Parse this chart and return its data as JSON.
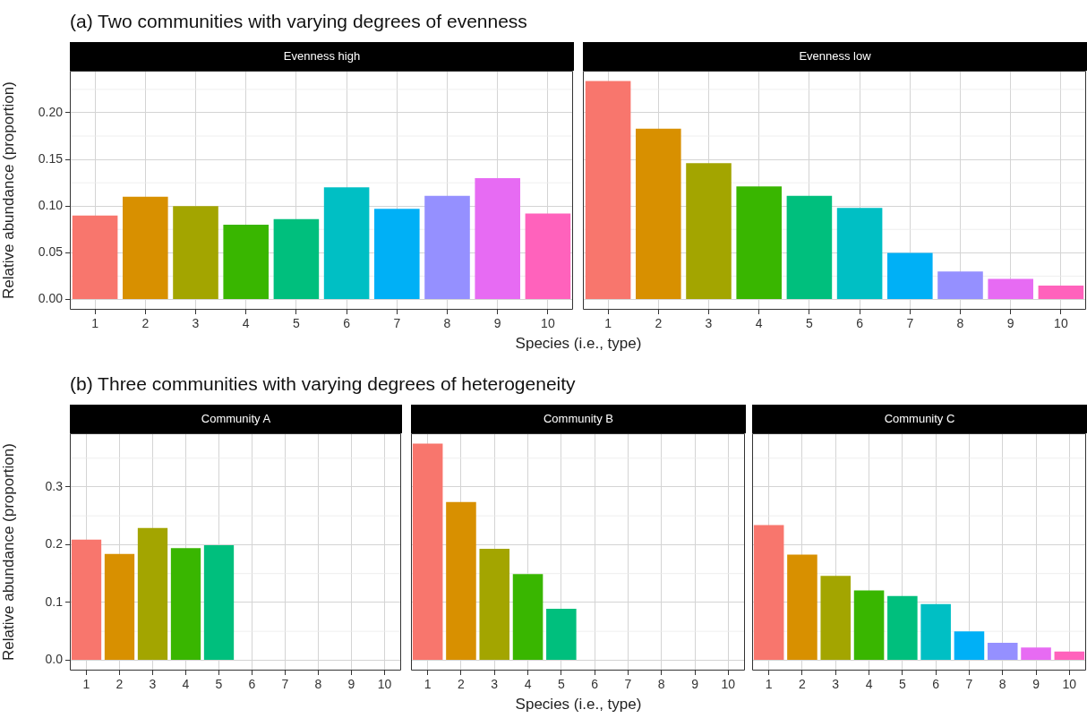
{
  "chart_data": [
    {
      "type": "bar",
      "title": "(a) Two communities with varying degrees of evenness",
      "subtitle": "Evenness high",
      "xlabel": "Species (i.e., type)",
      "ylabel": "Relative abundance (proportion)",
      "categories": [
        "1",
        "2",
        "3",
        "4",
        "5",
        "6",
        "7",
        "8",
        "9",
        "10"
      ],
      "values": [
        0.09,
        0.11,
        0.1,
        0.08,
        0.086,
        0.12,
        0.097,
        0.111,
        0.13,
        0.092
      ],
      "colors": [
        "#f8766d",
        "#d89000",
        "#a3a500",
        "#39b600",
        "#00bf7d",
        "#00bfc4",
        "#00b0f6",
        "#9590ff",
        "#e76bf3",
        "#ff62bc"
      ],
      "ylim": [
        -0.011,
        0.245
      ],
      "yticks": [
        {
          "value": 0,
          "label": "0.00"
        },
        {
          "value": 0.05,
          "label": "0.05"
        },
        {
          "value": 0.1,
          "label": "0.10"
        },
        {
          "value": 0.15,
          "label": "0.15"
        },
        {
          "value": 0.2,
          "label": "0.20"
        }
      ],
      "grid": true
    },
    {
      "type": "bar",
      "subtitle": "Evenness low",
      "categories": [
        "1",
        "2",
        "3",
        "4",
        "5",
        "6",
        "7",
        "8",
        "9",
        "10"
      ],
      "values": [
        0.234,
        0.183,
        0.146,
        0.121,
        0.111,
        0.098,
        0.05,
        0.03,
        0.022,
        0.015
      ],
      "colors": [
        "#f8766d",
        "#d89000",
        "#a3a500",
        "#39b600",
        "#00bf7d",
        "#00bfc4",
        "#00b0f6",
        "#9590ff",
        "#e76bf3",
        "#ff62bc"
      ],
      "ylim": [
        -0.011,
        0.245
      ],
      "yticks": [
        0,
        0.05,
        0.1,
        0.15,
        0.2
      ],
      "grid": true,
      "tick_labels": "x"
    },
    {
      "type": "bar",
      "title": "(b) Three communities with varying degrees of heterogeneity",
      "subtitle": "Community A",
      "ylabel": "Relative abundance (proportion)",
      "categories": [
        "1",
        "2",
        "3",
        "4",
        "5",
        "6",
        "7",
        "8",
        "9",
        "10"
      ],
      "values": [
        0.209,
        0.184,
        0.229,
        0.194,
        0.199,
        null,
        null,
        null,
        null,
        null
      ],
      "colors": [
        "#f8766d",
        "#d89000",
        "#a3a500",
        "#39b600",
        "#00bf7d",
        "#00bfc4",
        "#00b0f6",
        "#9590ff",
        "#e76bf3",
        "#ff62bc"
      ],
      "ylim": [
        -0.018,
        0.393
      ],
      "yticks": [
        {
          "value": 0,
          "label": "0.0"
        },
        {
          "value": 0.1,
          "label": "0.1"
        },
        {
          "value": 0.2,
          "label": "0.2"
        },
        {
          "value": 0.3,
          "label": "0.3"
        }
      ],
      "grid": true
    },
    {
      "type": "bar",
      "subtitle": "Community B",
      "xlabel": "Species (i.e., type)",
      "categories": [
        "1",
        "2",
        "3",
        "4",
        "5",
        "6",
        "7",
        "8",
        "9",
        "10"
      ],
      "values": [
        0.375,
        0.274,
        0.193,
        0.149,
        0.089,
        null,
        null,
        null,
        null,
        null
      ],
      "colors": [
        "#f8766d",
        "#d89000",
        "#a3a500",
        "#39b600",
        "#00bf7d",
        "#00bfc4",
        "#00b0f6",
        "#9590ff",
        "#e76bf3",
        "#ff62bc"
      ],
      "ylim": [
        -0.018,
        0.393
      ],
      "yticks": [
        0,
        0.1,
        0.2,
        0.3
      ],
      "grid": true,
      "tick_labels": "x"
    },
    {
      "type": "bar",
      "subtitle": "Community C",
      "categories": [
        "1",
        "2",
        "3",
        "4",
        "5",
        "6",
        "7",
        "8",
        "9",
        "10"
      ],
      "values": [
        0.234,
        0.183,
        0.146,
        0.121,
        0.111,
        0.097,
        0.05,
        0.03,
        0.022,
        0.015
      ],
      "colors": [
        "#f8766d",
        "#d89000",
        "#a3a500",
        "#39b600",
        "#00bf7d",
        "#00bfc4",
        "#00b0f6",
        "#9590ff",
        "#e76bf3",
        "#ff62bc"
      ],
      "ylim": [
        -0.018,
        0.393
      ],
      "yticks": [
        0,
        0.1,
        0.2,
        0.3
      ],
      "grid": true,
      "tick_labels": "x"
    }
  ]
}
